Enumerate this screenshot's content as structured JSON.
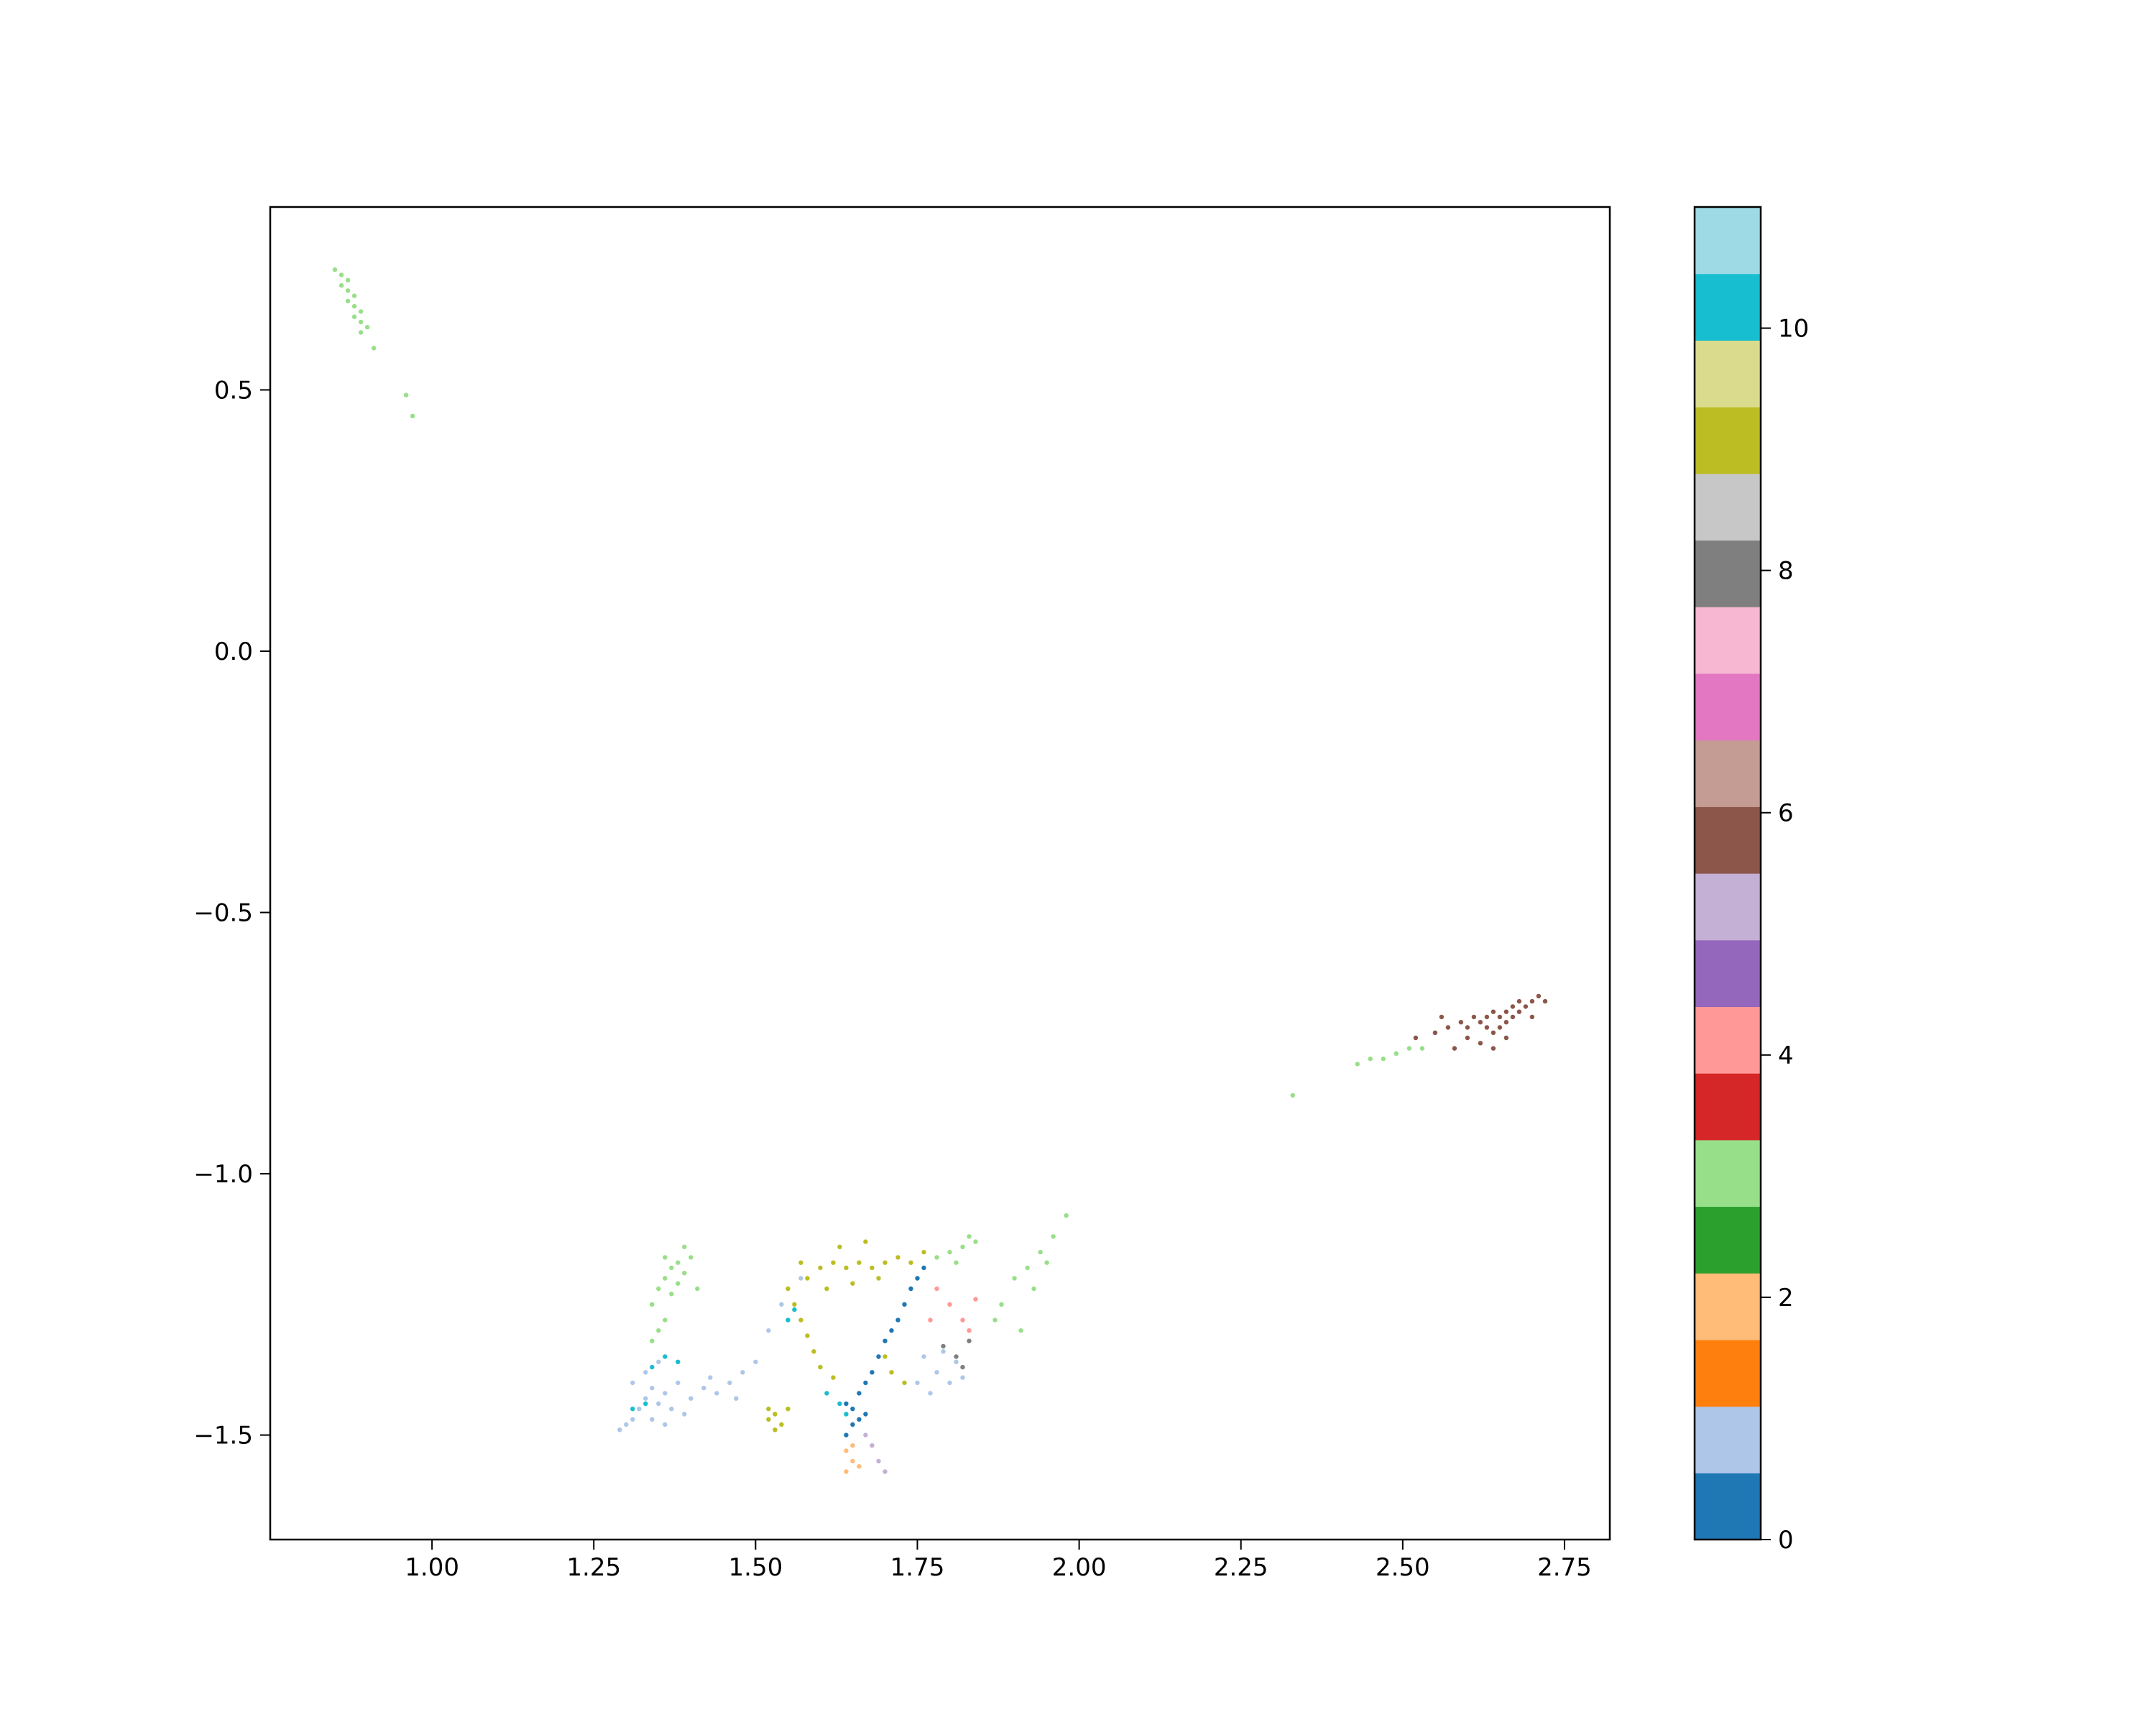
{
  "chart_data": {
    "type": "scatter",
    "title": "",
    "xlabel": "",
    "ylabel": "",
    "xlim": [
      0.75,
      2.82
    ],
    "ylim": [
      -1.7,
      0.85
    ],
    "xticks": [
      1.0,
      1.25,
      1.5,
      1.75,
      2.0,
      2.25,
      2.5,
      2.75
    ],
    "xtick_labels": [
      "1.00",
      "1.25",
      "1.50",
      "1.75",
      "2.00",
      "2.25",
      "2.50",
      "2.75"
    ],
    "yticks": [
      0.5,
      0.0,
      -0.5,
      -1.0,
      -1.5
    ],
    "ytick_labels": [
      "0.5",
      "0.0",
      "−0.5",
      "−1.0",
      "−1.5"
    ],
    "grid": false,
    "legend": "none",
    "colorbar": {
      "cmap": "tab20",
      "range": [
        0,
        11
      ],
      "ticks": [
        0,
        2,
        4,
        6,
        8,
        10
      ],
      "tick_labels": [
        "0",
        "2",
        "4",
        "6",
        "8",
        "10"
      ],
      "colors": [
        "#1f77b4",
        "#aec7e8",
        "#ff7f0e",
        "#ffbb78",
        "#2ca02c",
        "#98df8a",
        "#d62728",
        "#ff9896",
        "#9467bd",
        "#c5b0d5",
        "#8c564b",
        "#c49c94",
        "#e377c2",
        "#f7b6d2",
        "#7f7f7f",
        "#c7c7c7",
        "#bcbd22",
        "#dbdb8d",
        "#17becf",
        "#9edae5"
      ]
    },
    "clusters": [
      {
        "label": 3,
        "color": "#98df8a",
        "points": [
          [
            0.85,
            0.73
          ],
          [
            0.86,
            0.72
          ],
          [
            0.86,
            0.7
          ],
          [
            0.87,
            0.71
          ],
          [
            0.87,
            0.69
          ],
          [
            0.88,
            0.68
          ],
          [
            0.87,
            0.67
          ],
          [
            0.88,
            0.66
          ],
          [
            0.89,
            0.65
          ],
          [
            0.88,
            0.64
          ],
          [
            0.89,
            0.63
          ],
          [
            0.9,
            0.62
          ],
          [
            0.89,
            0.61
          ],
          [
            0.91,
            0.58
          ],
          [
            0.96,
            0.49
          ],
          [
            0.97,
            0.45
          ]
        ]
      },
      {
        "label": 6,
        "color": "#8c564b",
        "points": [
          [
            2.52,
            -0.74
          ],
          [
            2.55,
            -0.73
          ],
          [
            2.57,
            -0.72
          ],
          [
            2.59,
            -0.71
          ],
          [
            2.6,
            -0.72
          ],
          [
            2.61,
            -0.7
          ],
          [
            2.62,
            -0.71
          ],
          [
            2.63,
            -0.7
          ],
          [
            2.63,
            -0.72
          ],
          [
            2.64,
            -0.69
          ],
          [
            2.64,
            -0.73
          ],
          [
            2.65,
            -0.7
          ],
          [
            2.65,
            -0.72
          ],
          [
            2.66,
            -0.69
          ],
          [
            2.66,
            -0.71
          ],
          [
            2.67,
            -0.68
          ],
          [
            2.67,
            -0.7
          ],
          [
            2.68,
            -0.69
          ],
          [
            2.68,
            -0.67
          ],
          [
            2.69,
            -0.68
          ],
          [
            2.7,
            -0.67
          ],
          [
            2.71,
            -0.66
          ],
          [
            2.72,
            -0.67
          ],
          [
            2.62,
            -0.75
          ],
          [
            2.58,
            -0.76
          ],
          [
            2.6,
            -0.74
          ],
          [
            2.66,
            -0.74
          ],
          [
            2.56,
            -0.7
          ],
          [
            2.7,
            -0.7
          ],
          [
            2.64,
            -0.76
          ]
        ]
      },
      {
        "label": 3,
        "color": "#98df8a",
        "points": [
          [
            2.43,
            -0.79
          ],
          [
            2.45,
            -0.78
          ],
          [
            2.47,
            -0.78
          ],
          [
            2.49,
            -0.77
          ],
          [
            2.51,
            -0.76
          ],
          [
            2.53,
            -0.76
          ],
          [
            2.33,
            -0.85
          ]
        ]
      },
      {
        "label": 3,
        "color": "#98df8a",
        "points": [
          [
            1.34,
            -1.25
          ],
          [
            1.35,
            -1.22
          ],
          [
            1.36,
            -1.2
          ],
          [
            1.37,
            -1.18
          ],
          [
            1.38,
            -1.17
          ],
          [
            1.39,
            -1.19
          ],
          [
            1.36,
            -1.28
          ],
          [
            1.35,
            -1.3
          ],
          [
            1.37,
            -1.23
          ],
          [
            1.38,
            -1.21
          ],
          [
            1.4,
            -1.16
          ],
          [
            1.39,
            -1.14
          ],
          [
            1.36,
            -1.16
          ],
          [
            1.41,
            -1.22
          ],
          [
            1.34,
            -1.32
          ],
          [
            1.9,
            -1.2
          ],
          [
            1.92,
            -1.18
          ],
          [
            1.94,
            -1.15
          ],
          [
            1.96,
            -1.12
          ],
          [
            1.98,
            -1.08
          ],
          [
            1.93,
            -1.22
          ],
          [
            1.88,
            -1.25
          ],
          [
            1.91,
            -1.3
          ],
          [
            1.95,
            -1.17
          ],
          [
            1.87,
            -1.28
          ]
        ]
      },
      {
        "label": 1,
        "color": "#aec7e8",
        "points": [
          [
            1.29,
            -1.49
          ],
          [
            1.3,
            -1.48
          ],
          [
            1.31,
            -1.47
          ],
          [
            1.32,
            -1.45
          ],
          [
            1.33,
            -1.43
          ],
          [
            1.34,
            -1.41
          ],
          [
            1.35,
            -1.44
          ],
          [
            1.36,
            -1.42
          ],
          [
            1.37,
            -1.45
          ],
          [
            1.33,
            -1.38
          ],
          [
            1.35,
            -1.36
          ],
          [
            1.38,
            -1.4
          ],
          [
            1.4,
            -1.43
          ],
          [
            1.42,
            -1.41
          ],
          [
            1.44,
            -1.42
          ],
          [
            1.46,
            -1.4
          ],
          [
            1.48,
            -1.38
          ],
          [
            1.5,
            -1.36
          ],
          [
            1.31,
            -1.4
          ],
          [
            1.34,
            -1.47
          ],
          [
            1.36,
            -1.48
          ],
          [
            1.39,
            -1.46
          ],
          [
            1.43,
            -1.39
          ],
          [
            1.47,
            -1.43
          ],
          [
            1.52,
            -1.3
          ],
          [
            1.54,
            -1.25
          ],
          [
            1.57,
            -1.2
          ],
          [
            1.76,
            -1.35
          ],
          [
            1.78,
            -1.38
          ],
          [
            1.8,
            -1.4
          ],
          [
            1.79,
            -1.34
          ],
          [
            1.77,
            -1.42
          ],
          [
            1.81,
            -1.36
          ],
          [
            1.75,
            -1.4
          ],
          [
            1.82,
            -1.39
          ]
        ]
      },
      {
        "label": 9,
        "color": "#17becf",
        "points": [
          [
            1.31,
            -1.45
          ],
          [
            1.33,
            -1.44
          ],
          [
            1.34,
            -1.37
          ],
          [
            1.36,
            -1.35
          ],
          [
            1.38,
            -1.36
          ],
          [
            1.56,
            -1.26
          ],
          [
            1.55,
            -1.28
          ],
          [
            1.63,
            -1.44
          ],
          [
            1.61,
            -1.42
          ],
          [
            1.64,
            -1.46
          ]
        ]
      },
      {
        "label": 8,
        "color": "#bcbd22",
        "points": [
          [
            1.55,
            -1.22
          ],
          [
            1.56,
            -1.25
          ],
          [
            1.57,
            -1.28
          ],
          [
            1.58,
            -1.31
          ],
          [
            1.59,
            -1.34
          ],
          [
            1.6,
            -1.37
          ],
          [
            1.62,
            -1.39
          ],
          [
            1.58,
            -1.2
          ],
          [
            1.6,
            -1.18
          ],
          [
            1.62,
            -1.17
          ],
          [
            1.64,
            -1.18
          ],
          [
            1.66,
            -1.17
          ],
          [
            1.68,
            -1.18
          ],
          [
            1.7,
            -1.17
          ],
          [
            1.72,
            -1.16
          ],
          [
            1.74,
            -1.17
          ],
          [
            1.76,
            -1.15
          ],
          [
            1.61,
            -1.22
          ],
          [
            1.65,
            -1.21
          ],
          [
            1.69,
            -1.2
          ],
          [
            1.57,
            -1.17
          ],
          [
            1.63,
            -1.14
          ],
          [
            1.67,
            -1.13
          ],
          [
            1.52,
            -1.47
          ],
          [
            1.53,
            -1.46
          ],
          [
            1.54,
            -1.48
          ],
          [
            1.53,
            -1.49
          ],
          [
            1.55,
            -1.45
          ],
          [
            1.52,
            -1.45
          ],
          [
            1.7,
            -1.35
          ],
          [
            1.71,
            -1.38
          ],
          [
            1.73,
            -1.4
          ]
        ]
      },
      {
        "label": 0,
        "color": "#1f77b4",
        "points": [
          [
            1.65,
            -1.45
          ],
          [
            1.66,
            -1.42
          ],
          [
            1.67,
            -1.4
          ],
          [
            1.68,
            -1.38
          ],
          [
            1.69,
            -1.35
          ],
          [
            1.7,
            -1.32
          ],
          [
            1.71,
            -1.3
          ],
          [
            1.72,
            -1.28
          ],
          [
            1.73,
            -1.25
          ],
          [
            1.74,
            -1.22
          ],
          [
            1.75,
            -1.2
          ],
          [
            1.76,
            -1.18
          ],
          [
            1.64,
            -1.5
          ],
          [
            1.65,
            -1.48
          ],
          [
            1.66,
            -1.47
          ],
          [
            1.64,
            -1.44
          ],
          [
            1.67,
            -1.46
          ]
        ]
      },
      {
        "label": 3,
        "color": "#98df8a",
        "points": [
          [
            1.78,
            -1.16
          ],
          [
            1.8,
            -1.15
          ],
          [
            1.82,
            -1.14
          ],
          [
            1.84,
            -1.13
          ],
          [
            1.81,
            -1.17
          ],
          [
            1.83,
            -1.12
          ]
        ]
      },
      {
        "label": 4,
        "color": "#ff9896",
        "points": [
          [
            1.8,
            -1.25
          ],
          [
            1.82,
            -1.28
          ],
          [
            1.84,
            -1.24
          ],
          [
            1.83,
            -1.3
          ],
          [
            1.78,
            -1.22
          ],
          [
            1.77,
            -1.28
          ]
        ]
      },
      {
        "label": 7,
        "color": "#7f7f7f",
        "points": [
          [
            1.79,
            -1.33
          ],
          [
            1.81,
            -1.35
          ],
          [
            1.83,
            -1.32
          ],
          [
            1.82,
            -1.37
          ]
        ]
      },
      {
        "label": 5,
        "color": "#c5b0d5",
        "points": [
          [
            1.68,
            -1.52
          ],
          [
            1.69,
            -1.55
          ],
          [
            1.7,
            -1.57
          ],
          [
            1.67,
            -1.5
          ]
        ]
      },
      {
        "label": 1.5,
        "color": "#ffbb78",
        "points": [
          [
            1.64,
            -1.53
          ],
          [
            1.65,
            -1.55
          ],
          [
            1.66,
            -1.56
          ],
          [
            1.64,
            -1.57
          ],
          [
            1.65,
            -1.52
          ]
        ]
      }
    ]
  }
}
